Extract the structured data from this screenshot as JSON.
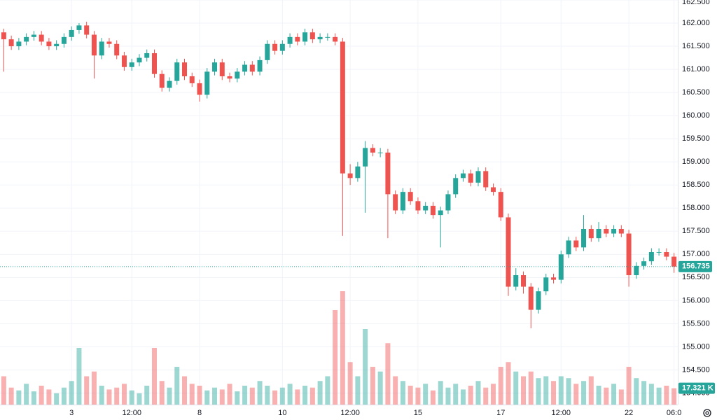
{
  "chart_data": {
    "type": "candlestick",
    "categories": [
      null,
      null,
      null,
      null,
      null,
      null,
      null,
      null,
      null,
      "3",
      null,
      null,
      null,
      null,
      null,
      null,
      null,
      "12:00",
      null,
      null,
      null,
      null,
      null,
      null,
      null,
      null,
      "8",
      null,
      null,
      null,
      null,
      null,
      null,
      null,
      null,
      null,
      null,
      "10",
      null,
      null,
      null,
      null,
      null,
      null,
      null,
      null,
      "12:00",
      null,
      null,
      null,
      null,
      null,
      null,
      null,
      null,
      "15",
      null,
      null,
      null,
      null,
      null,
      null,
      null,
      null,
      null,
      null,
      "17",
      null,
      null,
      null,
      null,
      null,
      null,
      null,
      "12:00",
      null,
      null,
      null,
      null,
      null,
      null,
      null,
      null,
      "22",
      null,
      null,
      null,
      null,
      null,
      "06:0"
    ],
    "open": [
      161.8,
      161.65,
      161.5,
      161.6,
      161.7,
      161.75,
      161.6,
      161.5,
      161.55,
      161.7,
      161.85,
      161.95,
      161.75,
      161.3,
      161.6,
      161.55,
      161.3,
      161.05,
      161.15,
      161.25,
      161.35,
      160.9,
      160.6,
      160.75,
      161.15,
      160.85,
      160.7,
      160.45,
      160.95,
      161.15,
      160.85,
      160.8,
      160.95,
      161.1,
      160.95,
      161.2,
      161.55,
      161.4,
      161.55,
      161.7,
      161.6,
      161.8,
      161.65,
      161.7,
      161.7,
      161.6,
      158.75,
      158.65,
      158.9,
      159.3,
      159.2,
      159.2,
      158.3,
      157.95,
      158.35,
      158.15,
      157.95,
      158.05,
      157.85,
      157.95,
      158.3,
      158.65,
      158.75,
      158.55,
      158.8,
      158.45,
      158.35,
      157.8,
      156.3,
      156.55,
      156.3,
      155.8,
      156.2,
      156.5,
      156.45,
      157.0,
      157.3,
      157.15,
      157.55,
      157.35,
      157.55,
      157.45,
      157.55,
      157.45,
      156.55,
      156.75,
      156.85,
      157.05,
      157.05,
      156.95
    ],
    "high": [
      161.88,
      161.73,
      161.68,
      161.78,
      161.83,
      161.83,
      161.68,
      161.63,
      161.78,
      161.93,
      162.0,
      162.03,
      161.83,
      161.68,
      161.68,
      161.63,
      161.38,
      161.23,
      161.33,
      161.43,
      161.43,
      160.98,
      160.83,
      161.23,
      161.23,
      160.93,
      160.78,
      161.03,
      161.23,
      161.23,
      160.93,
      161.03,
      161.18,
      161.18,
      161.28,
      161.63,
      161.63,
      161.63,
      161.78,
      161.78,
      161.88,
      161.88,
      161.78,
      161.78,
      161.78,
      161.68,
      158.95,
      159.0,
      159.45,
      159.38,
      159.3,
      159.28,
      158.38,
      158.43,
      158.43,
      158.23,
      158.13,
      158.13,
      158.03,
      158.38,
      158.73,
      158.83,
      158.83,
      158.88,
      158.88,
      158.53,
      158.43,
      157.88,
      156.7,
      156.63,
      156.38,
      156.28,
      156.58,
      156.58,
      157.08,
      157.38,
      157.38,
      157.85,
      157.63,
      157.7,
      157.63,
      157.63,
      157.63,
      157.53,
      156.83,
      156.93,
      157.13,
      157.13,
      157.13,
      157.03
    ],
    "low": [
      160.95,
      161.42,
      161.42,
      161.52,
      161.62,
      161.52,
      161.42,
      161.42,
      161.47,
      161.62,
      161.77,
      161.67,
      160.8,
      161.22,
      161.47,
      161.22,
      160.97,
      160.97,
      161.07,
      161.17,
      160.82,
      160.52,
      160.52,
      160.67,
      160.77,
      160.62,
      160.3,
      160.37,
      160.87,
      160.77,
      160.72,
      160.72,
      160.87,
      160.87,
      160.87,
      161.12,
      161.32,
      161.32,
      161.47,
      161.52,
      161.52,
      161.57,
      161.57,
      161.62,
      161.52,
      157.4,
      158.5,
      158.57,
      157.9,
      159.12,
      159.1,
      157.35,
      157.87,
      157.87,
      158.07,
      157.87,
      157.87,
      157.77,
      157.15,
      157.87,
      158.22,
      158.57,
      158.47,
      158.47,
      158.37,
      158.27,
      157.72,
      156.1,
      156.22,
      156.15,
      155.4,
      155.72,
      156.12,
      156.37,
      156.37,
      156.92,
      157.07,
      157.07,
      157.27,
      157.27,
      157.37,
      157.37,
      157.37,
      156.3,
      156.47,
      156.67,
      156.77,
      156.97,
      156.87,
      156.6
    ],
    "close": [
      161.65,
      161.5,
      161.6,
      161.7,
      161.75,
      161.6,
      161.5,
      161.55,
      161.7,
      161.85,
      161.95,
      161.75,
      161.3,
      161.6,
      161.55,
      161.3,
      161.05,
      161.15,
      161.25,
      161.35,
      160.9,
      160.6,
      160.75,
      161.15,
      160.85,
      160.7,
      160.45,
      160.95,
      161.15,
      160.85,
      160.8,
      160.95,
      161.1,
      160.95,
      161.2,
      161.55,
      161.4,
      161.55,
      161.7,
      161.6,
      161.8,
      161.65,
      161.7,
      161.7,
      161.6,
      158.75,
      158.65,
      158.9,
      159.3,
      159.2,
      159.2,
      158.3,
      157.95,
      158.35,
      158.15,
      157.95,
      158.05,
      157.85,
      157.95,
      158.3,
      158.65,
      158.75,
      158.55,
      158.8,
      158.45,
      158.35,
      157.8,
      156.3,
      156.55,
      156.3,
      155.8,
      156.2,
      156.5,
      156.45,
      157.0,
      157.3,
      157.15,
      157.55,
      157.35,
      157.55,
      157.45,
      157.55,
      157.45,
      156.55,
      156.75,
      156.85,
      157.05,
      157.05,
      156.95,
      156.735
    ],
    "volume": {
      "values": [
        30,
        18,
        15,
        22,
        14,
        20,
        16,
        12,
        18,
        25,
        60,
        30,
        35,
        20,
        16,
        18,
        22,
        15,
        12,
        20,
        60,
        25,
        18,
        40,
        30,
        22,
        20,
        15,
        18,
        16,
        22,
        14,
        20,
        18,
        25,
        20,
        15,
        18,
        22,
        16,
        20,
        18,
        25,
        30,
        100,
        120,
        45,
        30,
        80,
        40,
        35,
        65,
        30,
        25,
        20,
        18,
        22,
        15,
        25,
        18,
        22,
        16,
        20,
        25,
        18,
        22,
        40,
        45,
        35,
        30,
        35,
        28,
        30,
        25,
        30,
        28,
        22,
        25,
        30,
        20,
        18,
        22,
        16,
        40,
        28,
        25,
        22,
        18,
        20,
        17.321
      ],
      "last_label": "17.321 K"
    },
    "up_color": "#26a69a",
    "down_color": "#ef5350",
    "ylim": [
      153.75,
      162.5
    ],
    "yticks": [
      {
        "value": 154,
        "label": "154.000"
      },
      {
        "value": 154.5,
        "label": "154.500"
      },
      {
        "value": 155,
        "label": "155.000"
      },
      {
        "value": 155.5,
        "label": "155.500"
      },
      {
        "value": 156,
        "label": "156.000"
      },
      {
        "value": 156.5,
        "label": "156.500"
      },
      {
        "value": 157,
        "label": "157.000"
      },
      {
        "value": 157.5,
        "label": "157.500"
      },
      {
        "value": 158,
        "label": "158.000"
      },
      {
        "value": 158.5,
        "label": "158.500"
      },
      {
        "value": 159,
        "label": "159.000"
      },
      {
        "value": 159.5,
        "label": "159.500"
      },
      {
        "value": 160,
        "label": "160.000"
      },
      {
        "value": 160.5,
        "label": "160.500"
      },
      {
        "value": 161,
        "label": "161.000"
      },
      {
        "value": 161.5,
        "label": "161.500"
      },
      {
        "value": 162,
        "label": "162.000"
      },
      {
        "value": 162.5,
        "label": "162.500"
      }
    ],
    "grid": true
  }
}
